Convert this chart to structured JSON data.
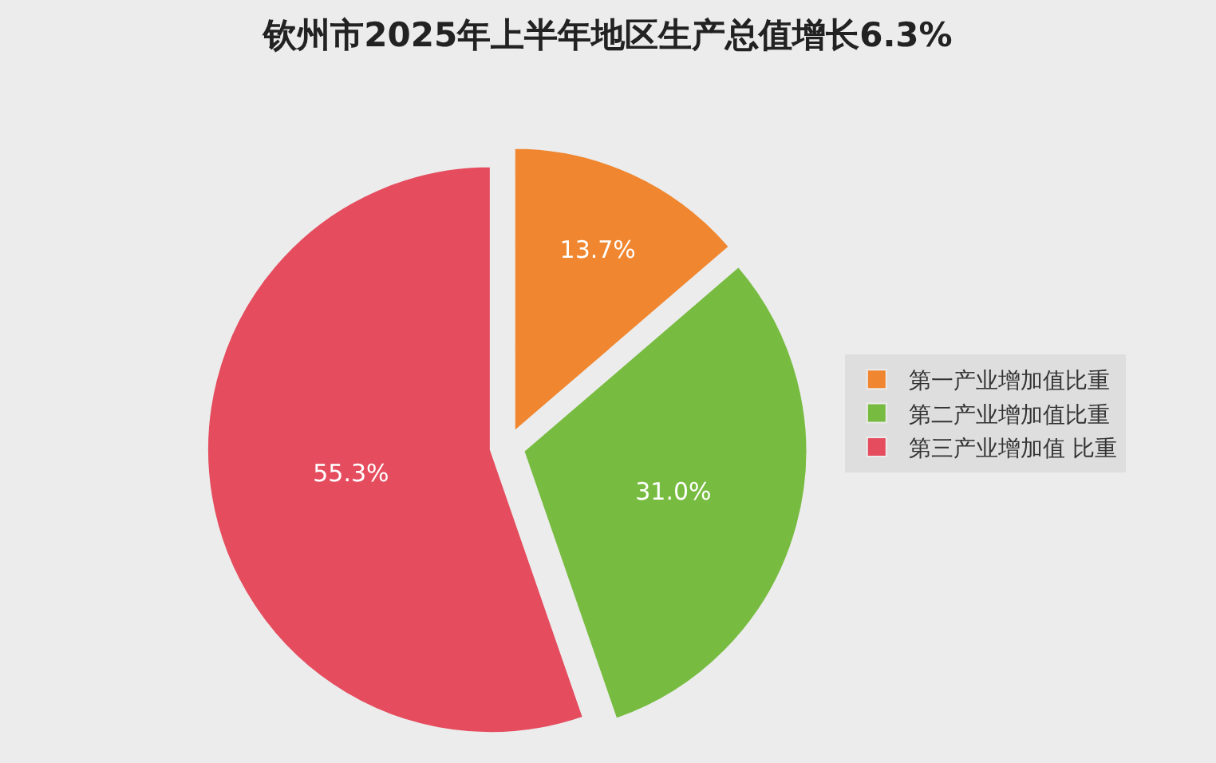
{
  "chart_data": {
    "type": "pie",
    "title": "钦州市2025年上半年地区生产总值增长6.3%",
    "categories": [
      "第一产业增加值比重",
      "第二产业增加值比重",
      "第三产业增加值 比重"
    ],
    "values": [
      13.7,
      31.0,
      55.3
    ],
    "colors": [
      "#f0862f",
      "#77bc41",
      "#e54d5f"
    ],
    "value_labels": [
      "13.7%",
      "31.0%",
      "55.3%"
    ],
    "legend": "right"
  }
}
